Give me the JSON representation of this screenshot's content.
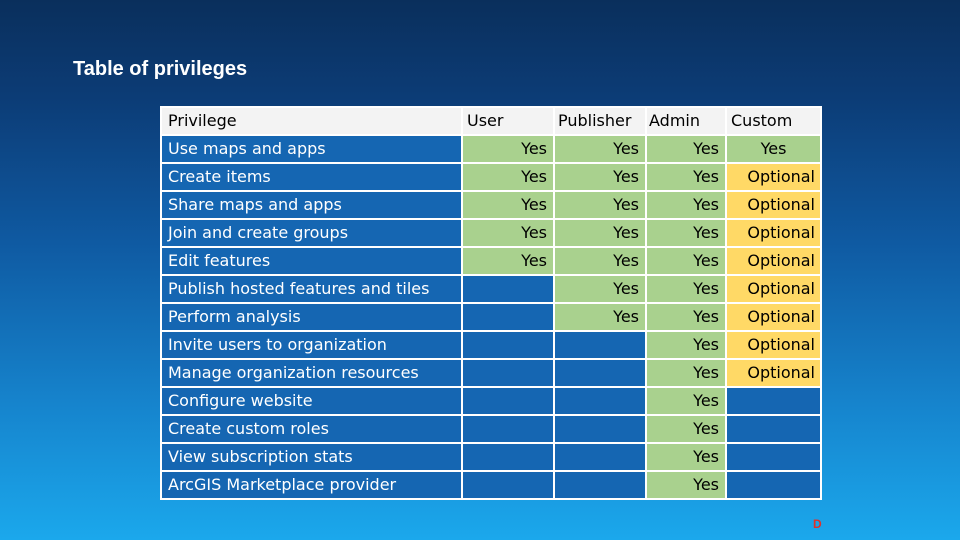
{
  "slide": {
    "title": "Table of privileges",
    "corner_mark": "D"
  },
  "table": {
    "headers": {
      "privilege": "Privilege",
      "user": "User",
      "publisher": "Publisher",
      "admin": "Admin",
      "custom": "Custom"
    },
    "rows": [
      {
        "privilege": "Use maps and apps",
        "user": "Yes",
        "publisher": "Yes",
        "admin": "Yes",
        "custom": "Yes"
      },
      {
        "privilege": "Create items",
        "user": "Yes",
        "publisher": "Yes",
        "admin": "Yes",
        "custom": "Optional"
      },
      {
        "privilege": "Share maps and apps",
        "user": "Yes",
        "publisher": "Yes",
        "admin": "Yes",
        "custom": "Optional"
      },
      {
        "privilege": "Join and create groups",
        "user": "Yes",
        "publisher": "Yes",
        "admin": "Yes",
        "custom": "Optional"
      },
      {
        "privilege": "Edit features",
        "user": "Yes",
        "publisher": "Yes",
        "admin": "Yes",
        "custom": "Optional"
      },
      {
        "privilege": "Publish hosted features and tiles",
        "user": "",
        "publisher": "Yes",
        "admin": "Yes",
        "custom": "Optional"
      },
      {
        "privilege": "Perform analysis",
        "user": "",
        "publisher": "Yes",
        "admin": "Yes",
        "custom": "Optional"
      },
      {
        "privilege": "Invite users to organization",
        "user": "",
        "publisher": "",
        "admin": "Yes",
        "custom": "Optional"
      },
      {
        "privilege": "Manage organization resources",
        "user": "",
        "publisher": "",
        "admin": "Yes",
        "custom": "Optional"
      },
      {
        "privilege": "Configure website",
        "user": "",
        "publisher": "",
        "admin": "Yes",
        "custom": ""
      },
      {
        "privilege": "Create custom roles",
        "user": "",
        "publisher": "",
        "admin": "Yes",
        "custom": ""
      },
      {
        "privilege": "View subscription stats",
        "user": "",
        "publisher": "",
        "admin": "Yes",
        "custom": ""
      },
      {
        "privilege": "ArcGIS Marketplace provider",
        "user": "",
        "publisher": "",
        "admin": "Yes",
        "custom": ""
      }
    ]
  },
  "colors": {
    "header_bg": "#f3f3f3",
    "name_cell_bg": "#1566b2",
    "yes_bg": "#a9d18e",
    "optional_bg": "#ffd966",
    "empty_bg": "#1566b2"
  }
}
